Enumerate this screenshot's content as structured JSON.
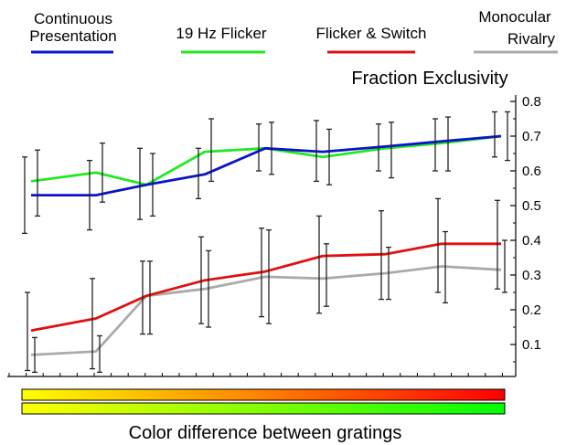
{
  "chart_data": {
    "type": "line",
    "title": "Fraction Exclusivity",
    "xlabel": "Color difference between gratings",
    "ylabel": "",
    "ylim": [
      0.0,
      0.8
    ],
    "yticks": [
      "0.1",
      "0.2",
      "0.3",
      "0.4",
      "0.5",
      "0.6",
      "0.7",
      "0.8"
    ],
    "x": [
      1,
      2,
      3,
      4,
      5,
      6,
      7,
      8,
      9
    ],
    "grid": false,
    "legend_position": "top",
    "series": [
      {
        "name": "Continuous Presentation",
        "color": "#0a14c8",
        "values": [
          0.53,
          0.53,
          0.56,
          0.59,
          0.665,
          0.655,
          0.67,
          0.685,
          0.7
        ],
        "err_low": [
          0.42,
          0.43,
          0.46,
          0.52,
          0.6,
          0.57,
          0.6,
          0.6,
          0.64
        ],
        "err_high": [
          0.64,
          0.63,
          0.665,
          0.665,
          0.735,
          0.745,
          0.735,
          0.75,
          0.77
        ]
      },
      {
        "name": "19 Hz Flicker",
        "color": "#22e822",
        "values": [
          0.57,
          0.595,
          0.56,
          0.655,
          0.665,
          0.64,
          0.665,
          0.68,
          0.7
        ],
        "err_low": [
          0.47,
          0.51,
          0.47,
          0.57,
          0.59,
          0.56,
          0.58,
          0.6,
          0.63
        ],
        "err_high": [
          0.66,
          0.68,
          0.65,
          0.75,
          0.74,
          0.72,
          0.74,
          0.755,
          0.77
        ]
      },
      {
        "name": "Flicker & Switch",
        "color": "#e01010",
        "values": [
          0.14,
          0.175,
          0.24,
          0.285,
          0.31,
          0.355,
          0.36,
          0.39,
          0.39
        ],
        "err_low": [
          0.025,
          0.03,
          0.13,
          0.16,
          0.18,
          0.19,
          0.23,
          0.25,
          0.26
        ],
        "err_high": [
          0.25,
          0.29,
          0.34,
          0.41,
          0.435,
          0.47,
          0.485,
          0.52,
          0.515
        ]
      },
      {
        "name": "Monocular Rivalry",
        "color": "#aaaaaa",
        "values": [
          0.07,
          0.08,
          0.24,
          0.26,
          0.295,
          0.29,
          0.305,
          0.325,
          0.315
        ],
        "err_low": [
          0.02,
          0.02,
          0.13,
          0.15,
          0.16,
          0.21,
          0.23,
          0.22,
          0.25
        ],
        "err_high": [
          0.12,
          0.125,
          0.34,
          0.37,
          0.43,
          0.39,
          0.38,
          0.425,
          0.4
        ]
      }
    ],
    "colorbars": [
      {
        "from": "#ffff00",
        "to": "#ff0000"
      },
      {
        "from": "#ffff00",
        "to": "#00ff00"
      }
    ]
  }
}
